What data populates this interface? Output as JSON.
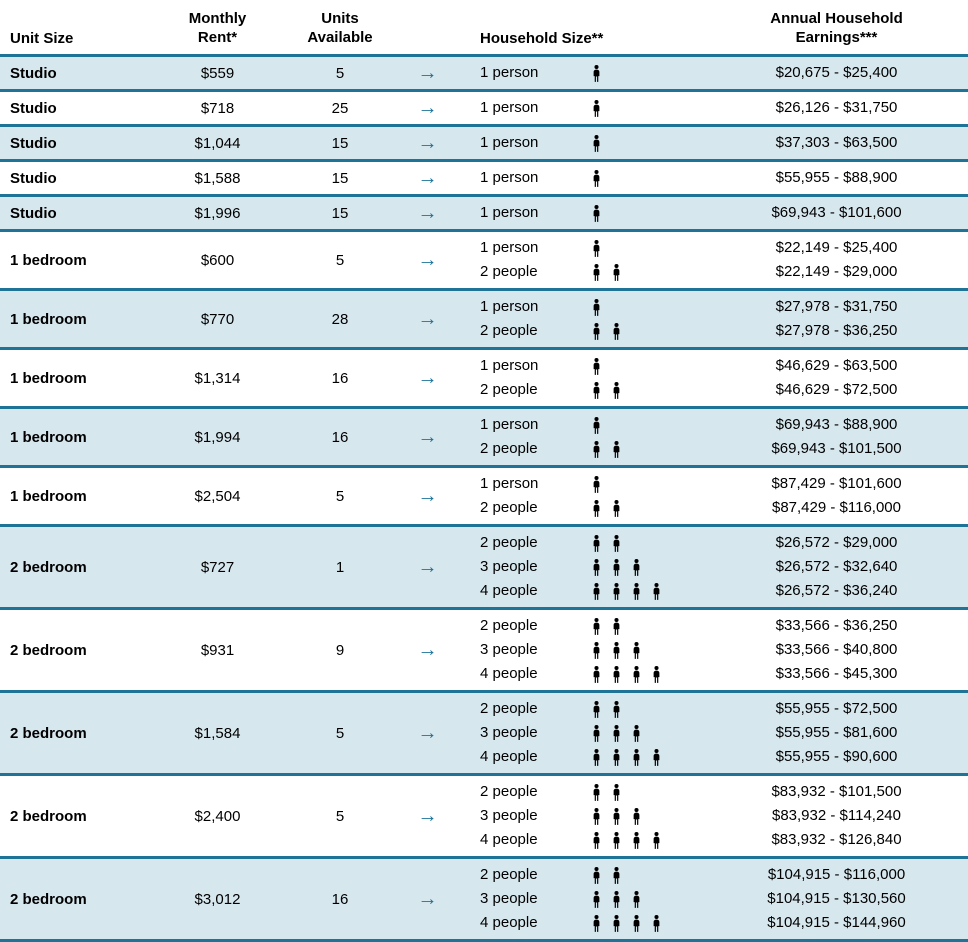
{
  "colors": {
    "accent": "#1e7397",
    "row_alt": "#d7e7ee",
    "text": "#000000",
    "person_icon": "#000000"
  },
  "header": {
    "unit_size": "Unit Size",
    "monthly_rent": [
      "Monthly",
      "Rent*"
    ],
    "units_available": [
      "Units",
      "Available"
    ],
    "household_size": "Household Size**",
    "annual_earnings": [
      "Annual Household",
      "Earnings***"
    ]
  },
  "arrow_glyph": "→",
  "rows": [
    {
      "unit_size": "Studio",
      "rent": "$559",
      "units": "5",
      "households": [
        {
          "label": "1 person",
          "count": 1,
          "earnings": "$20,675 - $25,400"
        }
      ]
    },
    {
      "unit_size": "Studio",
      "rent": "$718",
      "units": "25",
      "households": [
        {
          "label": "1 person",
          "count": 1,
          "earnings": "$26,126 - $31,750"
        }
      ]
    },
    {
      "unit_size": "Studio",
      "rent": "$1,044",
      "units": "15",
      "households": [
        {
          "label": "1 person",
          "count": 1,
          "earnings": "$37,303 - $63,500"
        }
      ]
    },
    {
      "unit_size": "Studio",
      "rent": "$1,588",
      "units": "15",
      "households": [
        {
          "label": "1 person",
          "count": 1,
          "earnings": "$55,955 - $88,900"
        }
      ]
    },
    {
      "unit_size": "Studio",
      "rent": "$1,996",
      "units": "15",
      "households": [
        {
          "label": "1 person",
          "count": 1,
          "earnings": "$69,943 - $101,600"
        }
      ]
    },
    {
      "unit_size": "1 bedroom",
      "rent": "$600",
      "units": "5",
      "households": [
        {
          "label": "1 person",
          "count": 1,
          "earnings": "$22,149 - $25,400"
        },
        {
          "label": "2 people",
          "count": 2,
          "earnings": "$22,149 - $29,000"
        }
      ]
    },
    {
      "unit_size": "1 bedroom",
      "rent": "$770",
      "units": "28",
      "households": [
        {
          "label": "1 person",
          "count": 1,
          "earnings": "$27,978 - $31,750"
        },
        {
          "label": "2 people",
          "count": 2,
          "earnings": "$27,978 - $36,250"
        }
      ]
    },
    {
      "unit_size": "1 bedroom",
      "rent": "$1,314",
      "units": "16",
      "households": [
        {
          "label": "1 person",
          "count": 1,
          "earnings": "$46,629 - $63,500"
        },
        {
          "label": "2 people",
          "count": 2,
          "earnings": "$46,629 - $72,500"
        }
      ]
    },
    {
      "unit_size": "1 bedroom",
      "rent": "$1,994",
      "units": "16",
      "households": [
        {
          "label": "1 person",
          "count": 1,
          "earnings": "$69,943 - $88,900"
        },
        {
          "label": "2 people",
          "count": 2,
          "earnings": "$69,943 - $101,500"
        }
      ]
    },
    {
      "unit_size": "1 bedroom",
      "rent": "$2,504",
      "units": "5",
      "households": [
        {
          "label": "1 person",
          "count": 1,
          "earnings": "$87,429 - $101,600"
        },
        {
          "label": "2 people",
          "count": 2,
          "earnings": "$87,429 - $116,000"
        }
      ]
    },
    {
      "unit_size": "2 bedroom",
      "rent": "$727",
      "units": "1",
      "households": [
        {
          "label": "2 people",
          "count": 2,
          "earnings": "$26,572 - $29,000"
        },
        {
          "label": "3 people",
          "count": 3,
          "earnings": "$26,572 - $32,640"
        },
        {
          "label": "4 people",
          "count": 4,
          "earnings": "$26,572 - $36,240"
        }
      ]
    },
    {
      "unit_size": "2 bedroom",
      "rent": "$931",
      "units": "9",
      "households": [
        {
          "label": "2 people",
          "count": 2,
          "earnings": "$33,566 - $36,250"
        },
        {
          "label": "3 people",
          "count": 3,
          "earnings": "$33,566 - $40,800"
        },
        {
          "label": "4 people",
          "count": 4,
          "earnings": "$33,566 - $45,300"
        }
      ]
    },
    {
      "unit_size": "2 bedroom",
      "rent": "$1,584",
      "units": "5",
      "households": [
        {
          "label": "2 people",
          "count": 2,
          "earnings": "$55,955 - $72,500"
        },
        {
          "label": "3 people",
          "count": 3,
          "earnings": "$55,955 - $81,600"
        },
        {
          "label": "4 people",
          "count": 4,
          "earnings": "$55,955 - $90,600"
        }
      ]
    },
    {
      "unit_size": "2 bedroom",
      "rent": "$2,400",
      "units": "5",
      "households": [
        {
          "label": "2 people",
          "count": 2,
          "earnings": "$83,932 - $101,500"
        },
        {
          "label": "3 people",
          "count": 3,
          "earnings": "$83,932 - $114,240"
        },
        {
          "label": "4 people",
          "count": 4,
          "earnings": "$83,932 - $126,840"
        }
      ]
    },
    {
      "unit_size": "2 bedroom",
      "rent": "$3,012",
      "units": "16",
      "households": [
        {
          "label": "2 people",
          "count": 2,
          "earnings": "$104,915 - $116,000"
        },
        {
          "label": "3 people",
          "count": 3,
          "earnings": "$104,915 - $130,560"
        },
        {
          "label": "4 people",
          "count": 4,
          "earnings": "$104,915 - $144,960"
        }
      ]
    }
  ]
}
